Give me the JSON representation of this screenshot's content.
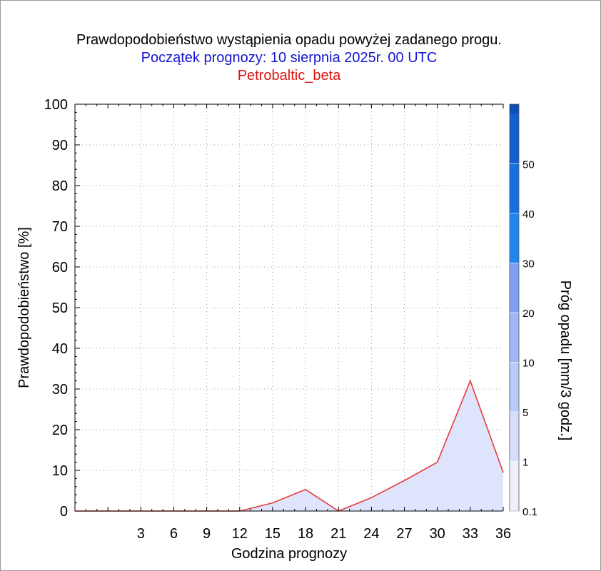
{
  "title": "Prawdopodobieństwo wystąpienia opadu powyżej zadanego progu.",
  "subtitle": "Początek prognozy: 10 sierpnia 2025r. 00 UTC",
  "station": "Petrobaltic_beta",
  "colors": {
    "title": "#000000",
    "subtitle": "#1414d2",
    "station": "#e01010",
    "line": "#e83a3a",
    "fill": "#dde4fb",
    "grid": "#9a9a9a"
  },
  "chart_data": {
    "type": "area",
    "xlabel": "Godzina prognozy",
    "ylabel": "Prawdopodobieństwo [%]",
    "xlim": [
      -3,
      36
    ],
    "ylim": [
      0,
      100
    ],
    "xticks": [
      3,
      6,
      9,
      12,
      15,
      18,
      21,
      24,
      27,
      30,
      33,
      36
    ],
    "yticks": [
      0,
      10,
      20,
      30,
      40,
      50,
      60,
      70,
      80,
      90,
      100
    ],
    "grid": true,
    "series": [
      {
        "x": [
          -3,
          0,
          3,
          6,
          9,
          12,
          15,
          18,
          21,
          24,
          27,
          30,
          33,
          36
        ],
        "values": [
          0,
          0,
          0,
          0,
          0,
          0,
          2,
          5.3,
          0,
          3.3,
          7.5,
          12,
          32,
          9.5
        ]
      }
    ],
    "colorbar": {
      "label": "Próg opadu [mm/3 godz.]",
      "tick_labels": [
        "0.1",
        "1",
        "5",
        "10",
        "20",
        "30",
        "40",
        "50"
      ],
      "colors": [
        "#eef1fd",
        "#d5defb",
        "#b9cbf8",
        "#9fb7f4",
        "#7fa0f1",
        "#1f86f0",
        "#1470e0",
        "#1060d0",
        "#0c4eb8"
      ]
    }
  }
}
